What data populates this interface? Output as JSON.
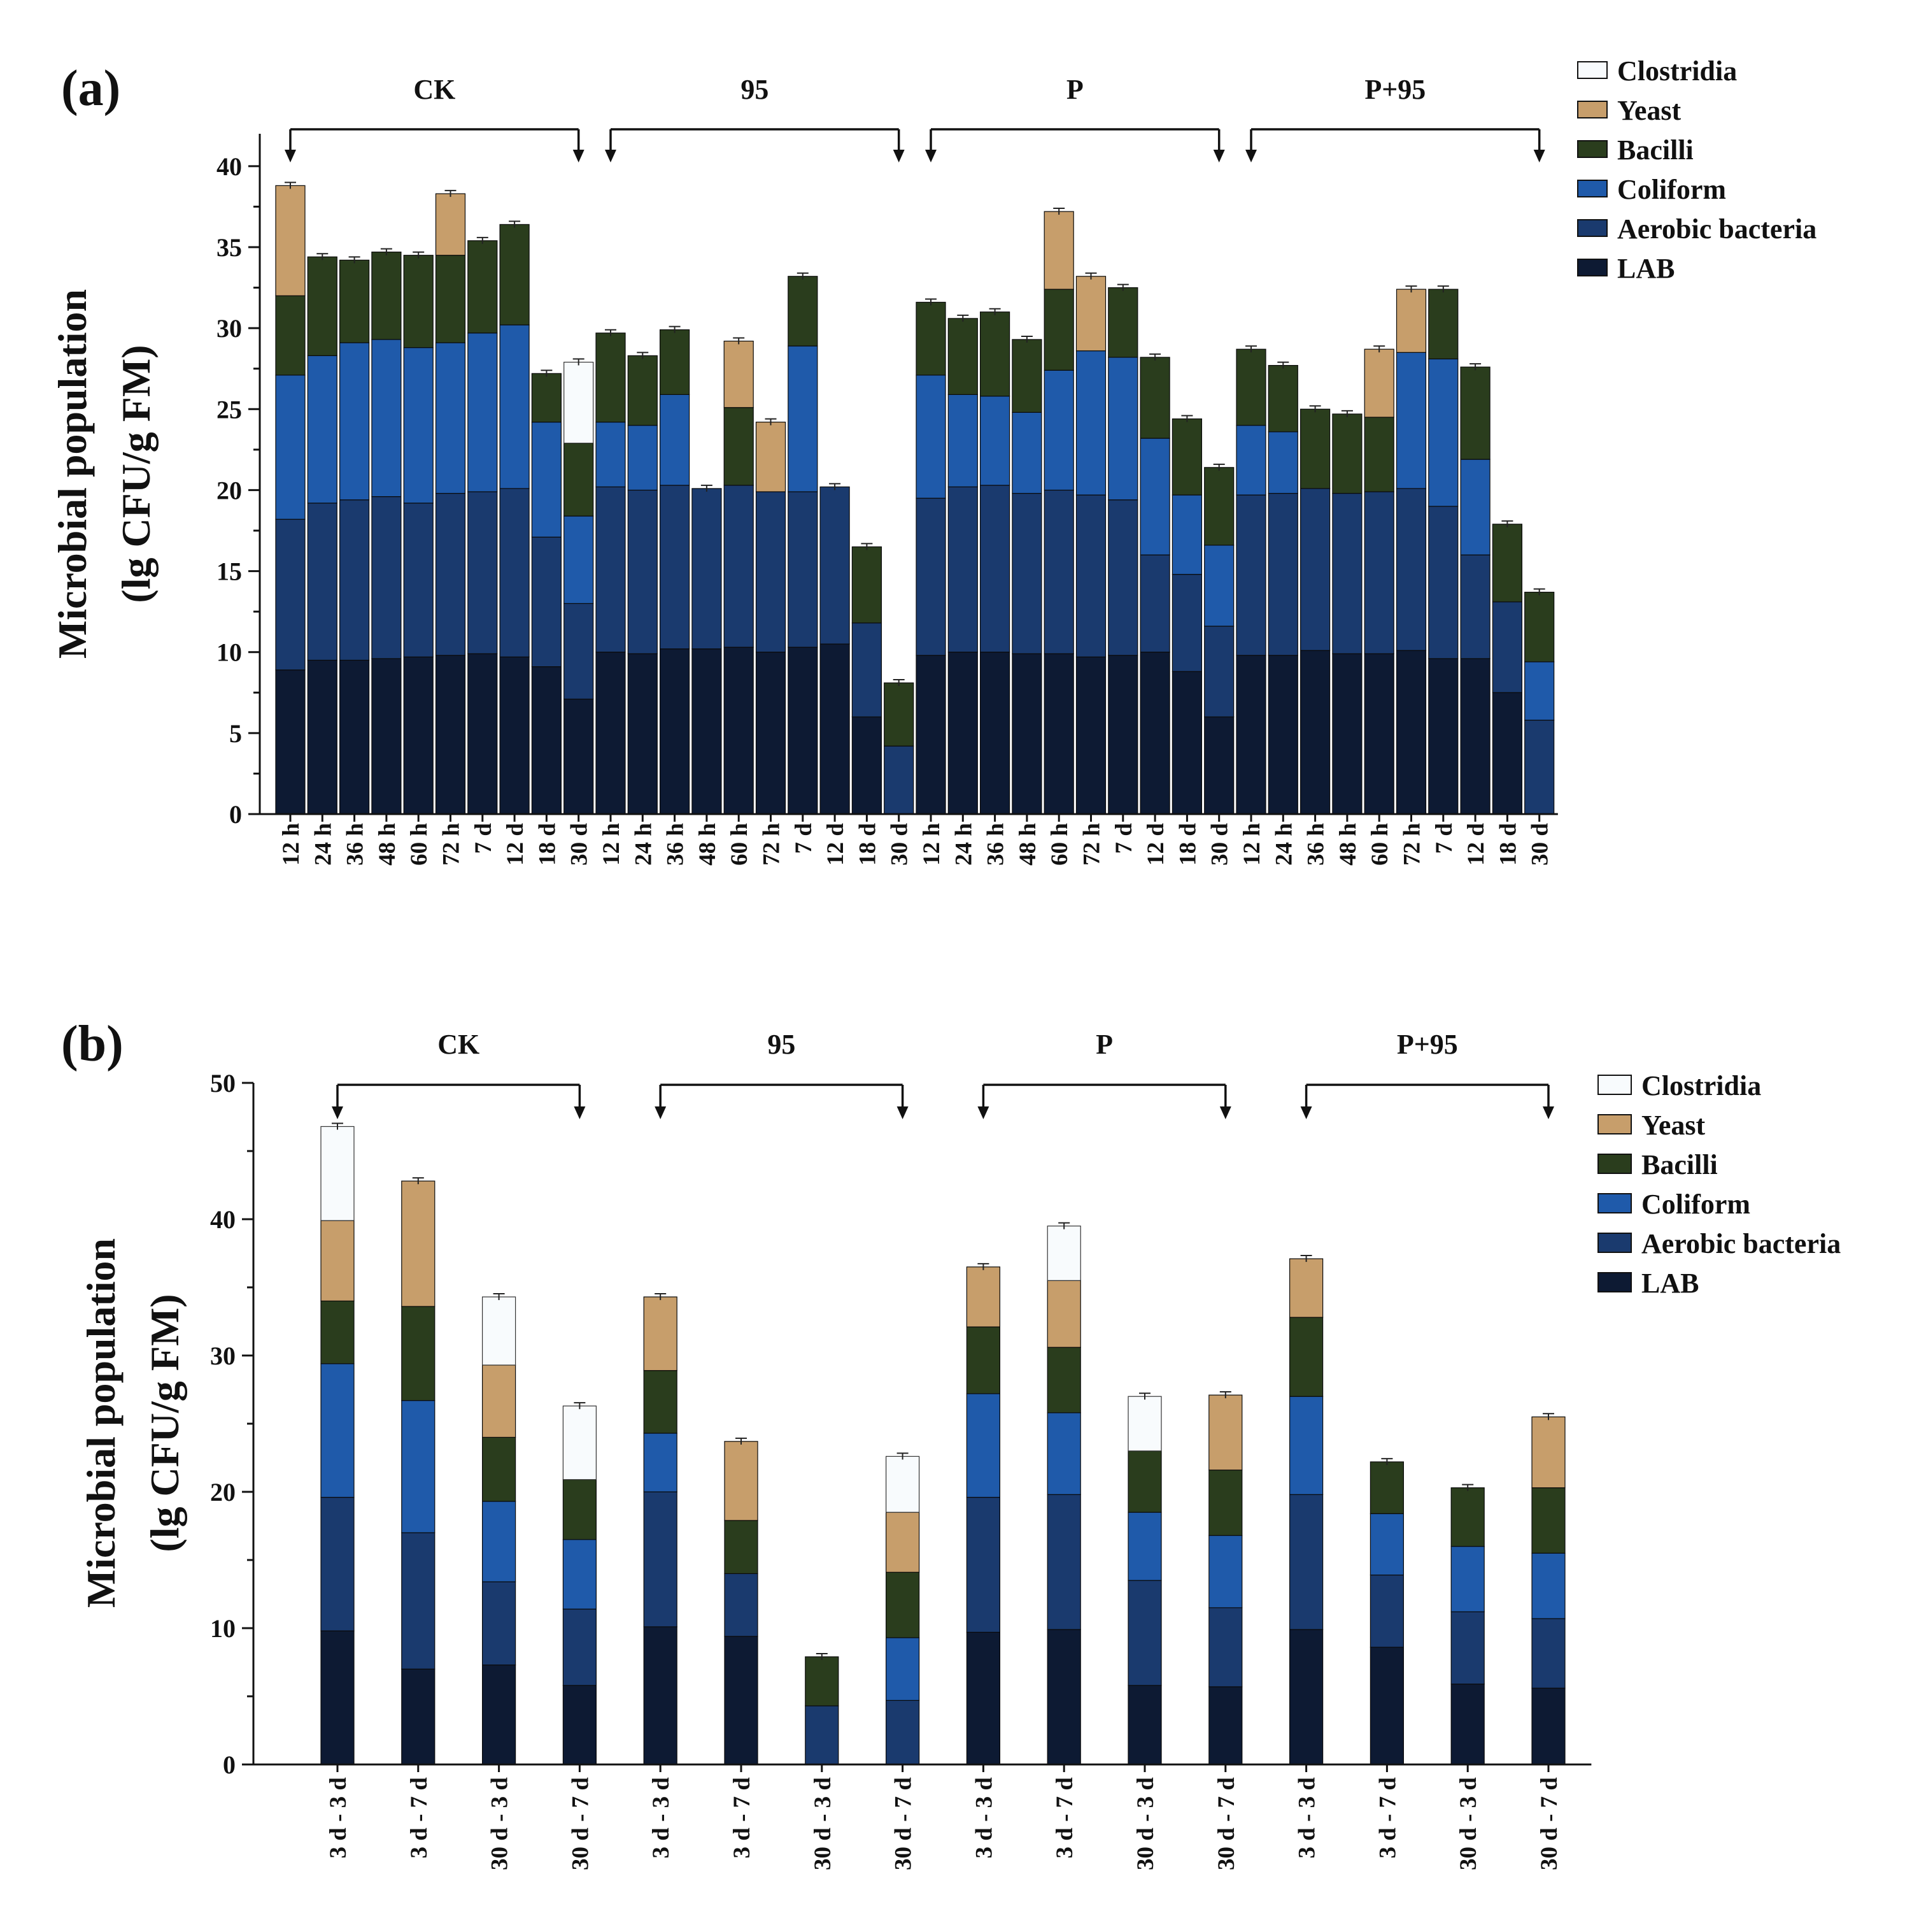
{
  "colors": {
    "LAB": "#0d1a33",
    "Aerobic bacteria": "#1a3a6e",
    "Coliform": "#1f5aaa",
    "Bacilli": "#2a3d1d",
    "Yeast": "#c79e6b",
    "Clostridia": "#f8fbfd"
  },
  "chart_data": [
    {
      "panel": "(a)",
      "type": "bar",
      "stacked": true,
      "ylabel": "Microbial population",
      "ylabel2": "(lg CFU/g FM)",
      "ylim": [
        0,
        42
      ],
      "yticks": [
        0,
        5,
        10,
        15,
        20,
        25,
        30,
        35,
        40
      ],
      "legend": [
        "Clostridia",
        "Yeast",
        "Bacilli",
        "Coliform",
        "Aerobic bacteria",
        "LAB"
      ],
      "legend_position": "top-right",
      "groups": [
        {
          "name": "CK",
          "categories": [
            "12 h",
            "24 h",
            "36 h",
            "48 h",
            "60 h",
            "72 h",
            "7 d",
            "12 d",
            "18 d",
            "30 d"
          ]
        },
        {
          "name": "95",
          "categories": [
            "12 h",
            "24 h",
            "36 h",
            "48 h",
            "60 h",
            "72 h",
            "7 d",
            "12 d",
            "18 d",
            "30 d"
          ]
        },
        {
          "name": "P",
          "categories": [
            "12 h",
            "24 h",
            "36 h",
            "48 h",
            "60 h",
            "72 h",
            "7 d",
            "12 d",
            "18 d",
            "30 d"
          ]
        },
        {
          "name": "P+95",
          "categories": [
            "12 h",
            "24 h",
            "36 h",
            "48 h",
            "60 h",
            "72 h",
            "7 d",
            "12 d",
            "18 d",
            "30 d"
          ]
        }
      ],
      "series": [
        {
          "name": "LAB",
          "values": [
            8.9,
            9.5,
            9.5,
            9.6,
            9.7,
            9.8,
            9.9,
            9.7,
            9.1,
            7.1,
            10.0,
            9.9,
            10.2,
            10.2,
            10.3,
            10.0,
            10.3,
            10.5,
            6.0,
            0,
            9.8,
            10.0,
            10.0,
            9.9,
            9.9,
            9.7,
            9.8,
            10.0,
            8.8,
            6.0,
            9.8,
            9.8,
            10.1,
            9.9,
            9.9,
            10.1,
            9.6,
            9.6,
            7.5,
            0
          ]
        },
        {
          "name": "Aerobic bacteria",
          "values": [
            9.3,
            9.7,
            9.9,
            10.0,
            9.5,
            10.0,
            10.0,
            10.4,
            8.0,
            5.9,
            10.2,
            10.1,
            10.1,
            9.9,
            10.0,
            9.9,
            9.6,
            9.7,
            5.8,
            4.2,
            9.7,
            10.2,
            10.3,
            9.9,
            10.1,
            10.0,
            9.6,
            6.0,
            6.0,
            5.6,
            9.9,
            10.0,
            10.0,
            9.9,
            10.0,
            10.0,
            9.4,
            6.4,
            5.6,
            5.8
          ]
        },
        {
          "name": "Coliform",
          "values": [
            8.9,
            9.1,
            9.7,
            9.7,
            9.6,
            9.3,
            9.8,
            10.1,
            7.1,
            5.4,
            4.0,
            4.0,
            5.6,
            0,
            0,
            0,
            9.0,
            0,
            0,
            0,
            7.6,
            5.7,
            5.5,
            5.0,
            7.4,
            8.9,
            8.8,
            7.2,
            4.9,
            5.0,
            4.3,
            3.8,
            0,
            0,
            0,
            8.4,
            9.1,
            5.9,
            0,
            3.6
          ]
        },
        {
          "name": "Bacilli",
          "values": [
            4.9,
            6.1,
            5.1,
            5.4,
            5.7,
            5.4,
            5.7,
            6.2,
            3.0,
            4.5,
            5.5,
            4.3,
            4.0,
            0,
            4.8,
            0,
            4.3,
            0,
            4.7,
            3.9,
            4.5,
            4.7,
            5.2,
            4.5,
            5.0,
            0,
            4.3,
            5.0,
            4.7,
            4.8,
            4.7,
            4.1,
            4.9,
            4.9,
            4.6,
            0,
            4.3,
            5.7,
            4.8,
            4.3
          ]
        },
        {
          "name": "Yeast",
          "values": [
            6.8,
            0,
            0,
            0,
            0,
            3.8,
            0,
            0,
            0,
            0,
            0,
            0,
            0,
            0,
            4.1,
            4.3,
            0,
            0,
            0,
            0,
            0,
            0,
            0,
            0,
            4.8,
            4.6,
            0,
            0,
            0,
            0,
            0,
            0,
            0,
            0,
            4.2,
            3.9,
            0,
            0,
            0,
            0
          ]
        },
        {
          "name": "Clostridia",
          "values": [
            0,
            0,
            0,
            0,
            0,
            0,
            0,
            0,
            0,
            5.0,
            0,
            0,
            0,
            0,
            0,
            0,
            0,
            0,
            0,
            0,
            0,
            0,
            0,
            0,
            0,
            0,
            0,
            0,
            0,
            0,
            0,
            0,
            0,
            0,
            0,
            0,
            0,
            0,
            0,
            0
          ]
        }
      ]
    },
    {
      "panel": "(b)",
      "type": "bar",
      "stacked": true,
      "ylabel": "Microbial population",
      "ylabel2": "(lg CFU/g FM)",
      "ylim": [
        0,
        50
      ],
      "yticks": [
        0,
        10,
        20,
        30,
        40,
        50
      ],
      "legend": [
        "Clostridia",
        "Yeast",
        "Bacilli",
        "Coliform",
        "Aerobic bacteria",
        "LAB"
      ],
      "legend_position": "top-right",
      "groups": [
        {
          "name": "CK",
          "categories": [
            "3 d - 3 d",
            "3 d - 7 d",
            "30 d - 3 d",
            "30 d - 7 d"
          ]
        },
        {
          "name": "95",
          "categories": [
            "3 d - 3 d",
            "3 d - 7 d",
            "30 d - 3 d",
            "30 d - 7 d"
          ]
        },
        {
          "name": "P",
          "categories": [
            "3 d - 3 d",
            "3 d - 7 d",
            "30 d - 3 d",
            "30 d - 7 d"
          ]
        },
        {
          "name": "P+95",
          "categories": [
            "3 d - 3 d",
            "3 d - 7 d",
            "30 d - 3 d",
            "30 d - 7 d"
          ]
        }
      ],
      "series": [
        {
          "name": "LAB",
          "values": [
            9.8,
            7.0,
            7.3,
            5.8,
            10.1,
            9.4,
            0,
            0,
            9.7,
            9.9,
            5.8,
            5.7,
            9.9,
            8.6,
            5.9,
            5.6
          ]
        },
        {
          "name": "Aerobic bacteria",
          "values": [
            9.8,
            10.0,
            6.1,
            5.6,
            9.9,
            4.6,
            4.3,
            4.7,
            9.9,
            9.9,
            7.7,
            5.8,
            9.9,
            5.3,
            5.3,
            5.1
          ]
        },
        {
          "name": "Coliform",
          "values": [
            9.8,
            9.7,
            5.9,
            5.1,
            4.3,
            0,
            0,
            4.6,
            7.6,
            6.0,
            5.0,
            5.3,
            7.2,
            4.5,
            4.8,
            4.8
          ]
        },
        {
          "name": "Bacilli",
          "values": [
            4.6,
            6.9,
            4.7,
            4.4,
            4.6,
            3.9,
            3.6,
            4.8,
            4.9,
            4.8,
            4.5,
            4.8,
            5.8,
            3.8,
            4.3,
            4.8
          ]
        },
        {
          "name": "Yeast",
          "values": [
            5.9,
            9.2,
            5.3,
            0,
            5.4,
            5.8,
            0,
            4.4,
            4.4,
            4.9,
            0,
            5.5,
            4.3,
            0,
            0,
            5.2
          ]
        },
        {
          "name": "Clostridia",
          "values": [
            6.9,
            0,
            5.0,
            5.4,
            0,
            0,
            0,
            4.1,
            0,
            4.0,
            4.0,
            0,
            0,
            0,
            0,
            0
          ]
        }
      ]
    }
  ]
}
